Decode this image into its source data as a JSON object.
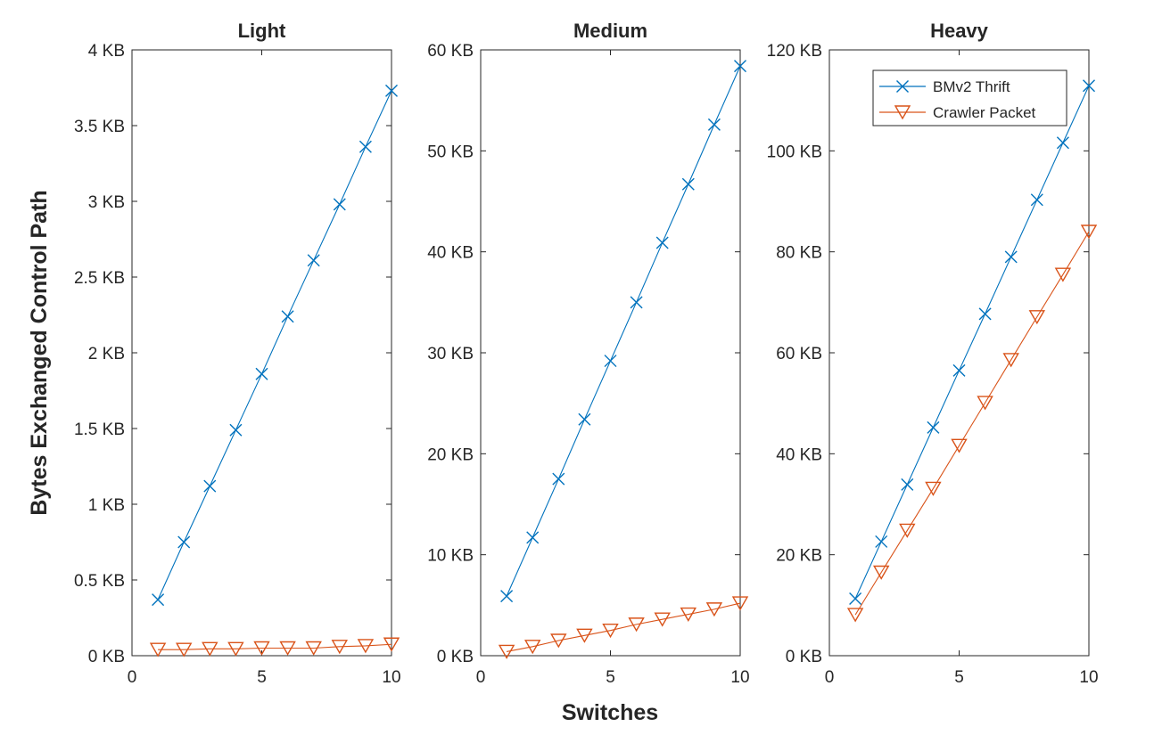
{
  "figure": {
    "ylabel": "Bytes Exchanged Control Path",
    "xlabel": "Switches"
  },
  "legend": {
    "placement": "top-right of Heavy panel",
    "entries": [
      "BMv2 Thrift",
      "Crawler Packet"
    ]
  },
  "colors": {
    "bmv2": "#0072BD",
    "crawler": "#D95319",
    "axis": "#262626"
  },
  "chart_data": [
    {
      "type": "line",
      "title": "Light",
      "x": [
        1,
        2,
        3,
        4,
        5,
        6,
        7,
        8,
        9,
        10
      ],
      "xlim": [
        0,
        10
      ],
      "ylim": [
        0,
        4
      ],
      "xticks": [
        "0",
        "5",
        "10"
      ],
      "xtick_values": [
        0,
        5,
        10
      ],
      "yticks": [
        "0 KB",
        "0.5 KB",
        "1 KB",
        "1.5 KB",
        "2 KB",
        "2.5 KB",
        "3 KB",
        "3.5 KB",
        "4 KB"
      ],
      "ytick_values": [
        0,
        0.5,
        1,
        1.5,
        2,
        2.5,
        3,
        3.5,
        4
      ],
      "grid": false,
      "series": [
        {
          "name": "BMv2 Thrift",
          "marker": "x",
          "values": [
            0.37,
            0.75,
            1.12,
            1.49,
            1.86,
            2.24,
            2.61,
            2.98,
            3.36,
            3.73
          ]
        },
        {
          "name": "Crawler Packet",
          "marker": "triangle-down",
          "values": [
            0.04,
            0.04,
            0.045,
            0.045,
            0.05,
            0.05,
            0.05,
            0.06,
            0.065,
            0.075
          ]
        }
      ]
    },
    {
      "type": "line",
      "title": "Medium",
      "x": [
        1,
        2,
        3,
        4,
        5,
        6,
        7,
        8,
        9,
        10
      ],
      "xlim": [
        0,
        10
      ],
      "ylim": [
        0,
        60
      ],
      "xticks": [
        "0",
        "5",
        "10"
      ],
      "xtick_values": [
        0,
        5,
        10
      ],
      "yticks": [
        "0 KB",
        "10 KB",
        "20 KB",
        "30 KB",
        "40 KB",
        "50 KB",
        "60 KB"
      ],
      "ytick_values": [
        0,
        10,
        20,
        30,
        40,
        50,
        60
      ],
      "grid": false,
      "series": [
        {
          "name": "BMv2 Thrift",
          "marker": "x",
          "values": [
            5.9,
            11.7,
            17.5,
            23.4,
            29.2,
            35.0,
            40.9,
            46.7,
            52.6,
            58.4
          ]
        },
        {
          "name": "Crawler Packet",
          "marker": "triangle-down",
          "values": [
            0.4,
            0.9,
            1.5,
            2.0,
            2.5,
            3.1,
            3.6,
            4.1,
            4.6,
            5.2
          ]
        }
      ]
    },
    {
      "type": "line",
      "title": "Heavy",
      "x": [
        1,
        2,
        3,
        4,
        5,
        6,
        7,
        8,
        9,
        10
      ],
      "xlim": [
        0,
        10
      ],
      "ylim": [
        0,
        120
      ],
      "xticks": [
        "0",
        "5",
        "10"
      ],
      "xtick_values": [
        0,
        5,
        10
      ],
      "yticks": [
        "0 KB",
        "20 KB",
        "40 KB",
        "60 KB",
        "80 KB",
        "100 KB",
        "120 KB"
      ],
      "ytick_values": [
        0,
        20,
        40,
        60,
        80,
        100,
        120
      ],
      "grid": false,
      "series": [
        {
          "name": "BMv2 Thrift",
          "marker": "x",
          "values": [
            11.3,
            22.6,
            33.9,
            45.2,
            56.5,
            67.7,
            79.0,
            90.3,
            101.6,
            112.9
          ]
        },
        {
          "name": "Crawler Packet",
          "marker": "triangle-down",
          "values": [
            8.1,
            16.5,
            24.8,
            33.1,
            41.6,
            50.1,
            58.6,
            67.1,
            75.5,
            84.0
          ]
        }
      ]
    }
  ]
}
